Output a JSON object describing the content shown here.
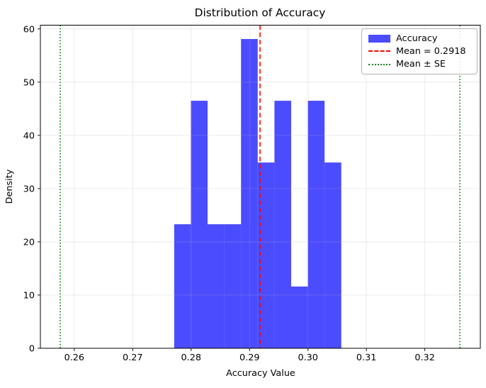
{
  "chart_data": {
    "type": "bar",
    "chart_kind": "histogram-density",
    "title": "Distribution of Accuracy",
    "xlabel": "Accuracy Value",
    "ylabel": "Density",
    "xlim": [
      0.2542,
      0.3295
    ],
    "ylim": [
      0,
      60.7
    ],
    "xticks": [
      0.26,
      0.27,
      0.28,
      0.29,
      0.3,
      0.31,
      0.32
    ],
    "xtick_labels": [
      "0.26",
      "0.27",
      "0.28",
      "0.29",
      "0.30",
      "0.31",
      "0.32"
    ],
    "yticks": [
      0,
      10,
      20,
      30,
      40,
      50,
      60
    ],
    "ytick_labels": [
      "0",
      "10",
      "20",
      "30",
      "40",
      "50",
      "60"
    ],
    "grid": true,
    "histogram": {
      "bin_edges": [
        0.2771,
        0.27996,
        0.28282,
        0.28568,
        0.28854,
        0.2914,
        0.29426,
        0.29712,
        0.29998,
        0.30284,
        0.3057
      ],
      "densities": [
        23.3,
        46.5,
        23.3,
        23.3,
        58.1,
        34.9,
        46.5,
        11.6,
        46.5,
        34.9
      ],
      "counts": [
        2,
        4,
        2,
        2,
        5,
        3,
        4,
        1,
        4,
        3
      ],
      "color": "#0000ff",
      "alpha": 0.7
    },
    "mean_line": {
      "x": 0.2918,
      "color": "#ff0000",
      "linestyle": "dashed"
    },
    "se_lines": {
      "xs": [
        0.2576,
        0.326
      ],
      "color": "#008000",
      "linestyle": "dotted"
    },
    "legend": {
      "position": "upper right",
      "entries": [
        {
          "label": "Accuracy",
          "swatch": "blue-rect"
        },
        {
          "label": "Mean = 0.2918",
          "swatch": "red-dashed-line"
        },
        {
          "label": "Mean ± SE",
          "swatch": "green-dotted-line"
        }
      ]
    },
    "colors": {
      "grid": "#b0b0b0",
      "spine": "#000000",
      "text": "#000000",
      "background": "#ffffff"
    }
  }
}
